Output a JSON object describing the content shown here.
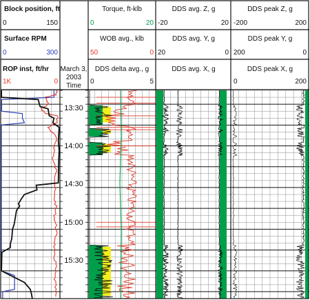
{
  "chart_data": {
    "type": "line",
    "colors": {
      "black": "#111111",
      "blue": "#2a3fb8",
      "red": "#e03a2a",
      "green": "#00a04a",
      "yellow": "#f2ee20",
      "grid": "#8a8a8a"
    },
    "track1": {
      "headers": [
        {
          "title": "Block position, ft",
          "min": "0",
          "max": "150",
          "color": "#111111"
        },
        {
          "title": "Surface RPM",
          "min": "0",
          "max": "300",
          "color": "#2a3fb8"
        },
        {
          "title": "ROP inst, ft/hr",
          "min": "1K",
          "max": "0",
          "color": "#e03a2a"
        }
      ],
      "block_position": {
        "t": [
          0,
          3,
          4,
          6,
          7,
          8,
          10,
          11,
          12,
          14,
          16,
          22,
          26,
          30,
          40,
          41,
          43,
          45,
          47,
          49,
          50,
          52,
          55,
          58,
          60,
          64,
          66,
          68,
          70,
          78,
          83,
          86,
          88,
          90
        ],
        "v": [
          2,
          2,
          95,
          98,
          100,
          120,
          122,
          123,
          135,
          132,
          148,
          146,
          148,
          147,
          146,
          90,
          92,
          60,
          52,
          45,
          48,
          40,
          37,
          34,
          30,
          28,
          25,
          24,
          3,
          2,
          60,
          75,
          78,
          80
        ]
      },
      "surface_rpm": {
        "t": [
          0,
          3,
          4,
          9,
          10,
          12,
          14,
          15,
          78,
          80,
          86,
          87,
          90
        ],
        "v": [
          270,
          270,
          5,
          5,
          110,
          110,
          120,
          3,
          3,
          70,
          70,
          10,
          10
        ]
      },
      "rop": {
        "t": [
          0,
          2,
          3,
          6,
          8,
          10,
          11,
          14,
          16,
          20,
          25,
          30,
          35,
          40,
          45,
          50,
          55,
          60,
          65,
          70,
          75,
          80,
          85,
          90
        ],
        "v": [
          50,
          80,
          250,
          200,
          320,
          240,
          40,
          60,
          200,
          70,
          90,
          120,
          60,
          80,
          100,
          70,
          90,
          60,
          80,
          110,
          70,
          90,
          80,
          70
        ]
      }
    },
    "time_axis": {
      "header_date": "March 3,",
      "header_year": "2003",
      "header_label": "Time",
      "ticks": [
        "13:30",
        "14:00",
        "14:30",
        "15:00",
        "15:30"
      ]
    },
    "track3": {
      "headers": [
        {
          "title": "Torque, ft-klb",
          "min": "0",
          "max": "20",
          "color": "#00a04a"
        },
        {
          "title": "WOB avg., klb",
          "min": "50",
          "max": "0",
          "color": "#e03a2a"
        },
        {
          "title": "DDS delta avg., g",
          "min": "0",
          "max": "5",
          "color": "#111111"
        }
      ]
    },
    "track4": {
      "headers": [
        {
          "title": "DDS avg. Z, g",
          "min": "-20",
          "max": "20"
        },
        {
          "title": "DDS avg. Y, g",
          "min": "20",
          "max": "0"
        },
        {
          "title": "DDS avg. X, g",
          "min": "",
          "max": ""
        }
      ]
    },
    "track5": {
      "headers": [
        {
          "title": "DDS peak Z, g",
          "min": "-200",
          "max": "200"
        },
        {
          "title": "DDS peak Y, g",
          "min": "200",
          "max": "0"
        },
        {
          "title": "DDS peak X, g",
          "min": "0",
          "max": "200"
        }
      ]
    }
  }
}
